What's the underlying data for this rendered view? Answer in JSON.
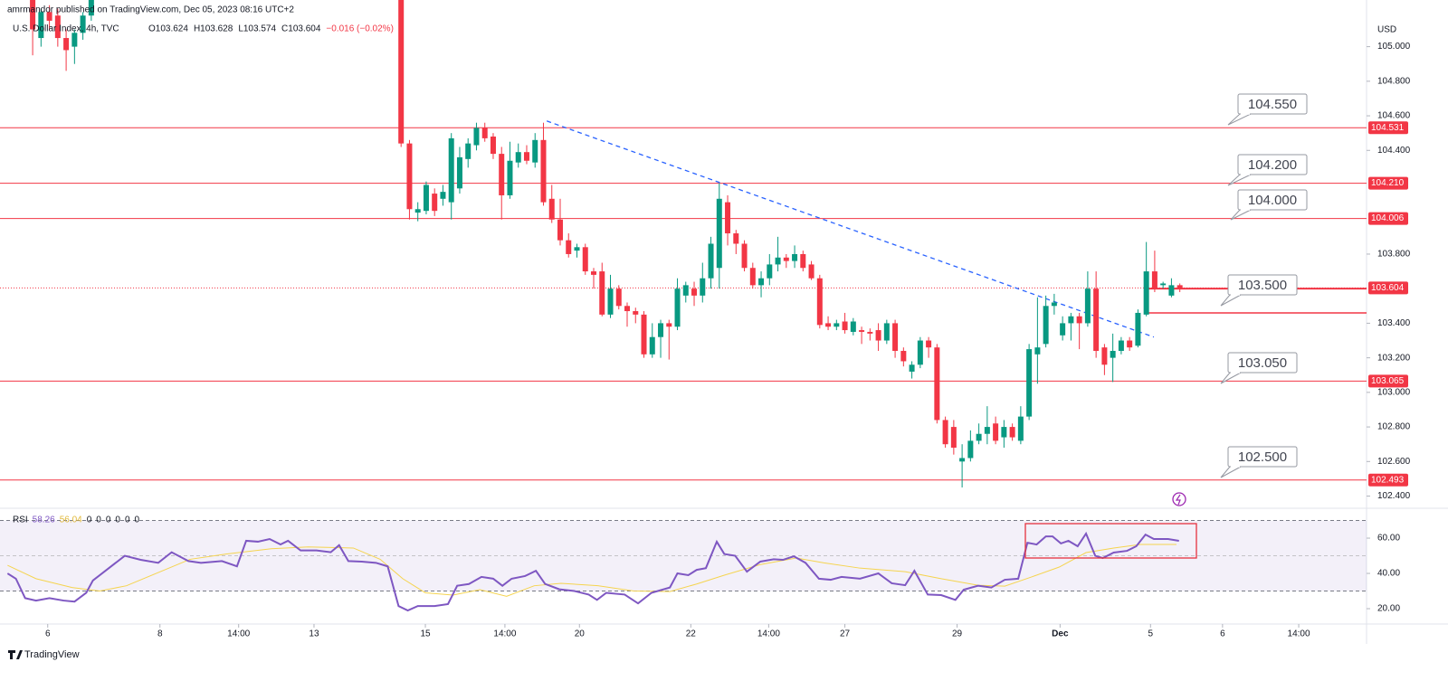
{
  "header": "amrmandor published on TradingView.com, Dec 05, 2023 08:16 UTC+2",
  "brand": "TradingView",
  "chart_data": {
    "type": "candlestick",
    "title": "U.S. Dollar Index, 4h, TVC",
    "legend": [
      "O103.624",
      "H103.628",
      "L103.574",
      "C103.604",
      "−0.016 (−0.02%)"
    ],
    "currency": "USD",
    "up_color": "#089981",
    "down_color": "#f23645",
    "level_color": "#f23645",
    "trend_color": "#2962ff",
    "x": [
      -2,
      -1,
      0,
      1,
      2,
      3,
      4,
      5,
      42,
      43,
      44,
      45,
      46,
      47,
      48,
      49,
      50,
      51,
      52,
      53,
      54,
      55,
      56,
      57,
      58,
      59,
      60,
      61,
      62,
      63,
      64,
      65,
      66,
      67,
      68,
      69,
      70,
      71,
      72,
      73,
      74,
      75,
      76,
      77,
      78,
      79,
      80,
      81,
      82,
      83,
      84,
      85,
      86,
      87,
      88,
      89,
      90,
      91,
      92,
      93,
      94,
      95,
      96,
      97,
      98,
      99,
      100,
      101,
      102,
      103,
      104,
      105,
      106,
      107,
      108,
      109,
      110,
      111,
      112,
      113,
      114,
      115,
      116,
      117,
      118,
      119,
      120,
      121,
      122,
      123,
      124,
      125,
      126,
      127,
      128,
      129,
      130,
      131,
      132,
      133,
      134,
      135
    ],
    "open": [
      105.3,
      105.05,
      105.2,
      105.18,
      105.05,
      105.0,
      105.08,
      105.18,
      105.3,
      104.44,
      104.04,
      104.05,
      104.15,
      104.12,
      104.1,
      104.18,
      104.35,
      104.43,
      104.53,
      104.48,
      104.38,
      104.14,
      104.33,
      104.39,
      104.33,
      104.46,
      104.12,
      104.0,
      103.88,
      103.82,
      103.84,
      103.7,
      103.7,
      103.45,
      103.6,
      103.5,
      103.47,
      103.45,
      103.22,
      103.32,
      103.4,
      103.38,
      103.56,
      103.6,
      103.56,
      103.66,
      103.72,
      104.1,
      103.92,
      103.86,
      103.72,
      103.62,
      103.66,
      103.74,
      103.78,
      103.76,
      103.8,
      103.74,
      103.66,
      103.4,
      103.38,
      103.41,
      103.35,
      103.36,
      103.35,
      103.36,
      103.3,
      103.4,
      103.24,
      103.12,
      103.16,
      103.3,
      103.26,
      102.84,
      102.8,
      102.6,
      102.62,
      102.72,
      102.76,
      102.82,
      102.74,
      102.8,
      102.72,
      102.86,
      103.22,
      103.28,
      103.5,
      103.33,
      103.4,
      103.44,
      103.4,
      103.6,
      103.26,
      103.2,
      103.24,
      103.3,
      103.27,
      103.45,
      103.7,
      103.62,
      103.56,
      103.62
    ],
    "high": [
      105.32,
      105.22,
      105.24,
      105.22,
      105.1,
      105.1,
      105.2,
      105.32,
      105.4,
      104.46,
      104.1,
      104.22,
      104.18,
      104.2,
      104.5,
      104.42,
      104.47,
      104.56,
      104.56,
      104.5,
      104.42,
      104.45,
      104.44,
      104.43,
      104.5,
      104.56,
      104.2,
      104.12,
      103.92,
      103.86,
      103.86,
      103.72,
      103.75,
      103.68,
      103.62,
      103.52,
      103.49,
      103.47,
      103.4,
      103.42,
      103.42,
      103.66,
      103.64,
      103.64,
      103.75,
      103.9,
      104.21,
      104.14,
      103.94,
      103.88,
      103.75,
      103.7,
      103.8,
      103.9,
      103.8,
      103.85,
      103.82,
      103.76,
      103.68,
      103.44,
      103.42,
      103.46,
      103.43,
      103.38,
      103.37,
      103.4,
      103.42,
      103.42,
      103.26,
      103.18,
      103.32,
      103.32,
      103.28,
      102.86,
      102.84,
      102.7,
      102.78,
      102.82,
      102.92,
      102.86,
      102.84,
      102.82,
      102.92,
      103.28,
      103.55,
      103.56,
      103.57,
      103.44,
      103.46,
      103.46,
      103.7,
      103.7,
      103.28,
      103.34,
      103.32,
      103.32,
      103.48,
      103.87,
      103.82,
      103.64,
      103.66,
      103.63
    ],
    "low": [
      104.95,
      105.0,
      105.1,
      105.0,
      104.86,
      104.9,
      105.04,
      105.15,
      104.42,
      104.0,
      103.99,
      104.03,
      104.02,
      104.08,
      104.0,
      104.15,
      104.3,
      104.4,
      104.45,
      104.35,
      104.0,
      104.12,
      104.3,
      104.32,
      104.3,
      104.08,
      103.98,
      103.85,
      103.78,
      103.78,
      103.68,
      103.6,
      103.44,
      103.43,
      103.48,
      103.38,
      103.4,
      103.2,
      103.2,
      103.2,
      103.19,
      103.36,
      103.52,
      103.5,
      103.52,
      103.6,
      103.6,
      103.85,
      103.8,
      103.7,
      103.6,
      103.55,
      103.62,
      103.7,
      103.72,
      103.72,
      103.7,
      103.65,
      103.37,
      103.36,
      103.36,
      103.34,
      103.33,
      103.28,
      103.3,
      103.24,
      103.28,
      103.2,
      103.15,
      103.08,
      103.14,
      103.2,
      102.82,
      102.68,
      102.64,
      102.45,
      102.6,
      102.7,
      102.7,
      102.7,
      102.68,
      102.72,
      102.7,
      102.84,
      103.05,
      103.26,
      103.45,
      103.3,
      103.3,
      103.25,
      103.38,
      103.2,
      103.1,
      103.06,
      103.22,
      103.24,
      103.26,
      103.44,
      103.58,
      103.6,
      103.55,
      103.58
    ],
    "close": [
      105.1,
      105.2,
      105.15,
      105.05,
      104.98,
      105.08,
      105.18,
      105.3,
      104.44,
      104.06,
      104.06,
      104.2,
      104.05,
      104.16,
      104.47,
      104.36,
      104.44,
      104.53,
      104.47,
      104.38,
      104.14,
      104.34,
      104.39,
      104.34,
      104.46,
      104.1,
      104.0,
      103.88,
      103.8,
      103.84,
      103.7,
      103.68,
      103.45,
      103.6,
      103.5,
      103.47,
      103.45,
      103.22,
      103.32,
      103.4,
      103.38,
      103.6,
      103.62,
      103.56,
      103.66,
      103.86,
      104.12,
      103.92,
      103.86,
      103.72,
      103.62,
      103.66,
      103.74,
      103.78,
      103.76,
      103.8,
      103.72,
      103.66,
      103.39,
      103.38,
      103.4,
      103.36,
      103.41,
      103.35,
      103.34,
      103.3,
      103.4,
      103.24,
      103.18,
      103.16,
      103.3,
      103.26,
      102.84,
      102.7,
      102.68,
      102.62,
      102.72,
      102.76,
      102.8,
      102.72,
      102.8,
      102.74,
      102.86,
      103.25,
      103.26,
      103.5,
      103.52,
      103.4,
      103.44,
      103.4,
      103.6,
      103.24,
      103.16,
      103.24,
      103.3,
      103.26,
      103.46,
      103.7,
      103.6,
      103.63,
      103.62,
      103.6
    ],
    "xlim": [
      -5.9,
      157.3
    ],
    "xticks": [
      {
        "value": -0.2,
        "label": "6"
      },
      {
        "value": 13.2,
        "label": "8"
      },
      {
        "value": 22.6,
        "label": "14:00"
      },
      {
        "value": 31.6,
        "label": "13"
      },
      {
        "value": 44.9,
        "label": "15"
      },
      {
        "value": 54.4,
        "label": "14:00"
      },
      {
        "value": 63.3,
        "label": "20"
      },
      {
        "value": 76.6,
        "label": "22"
      },
      {
        "value": 85.9,
        "label": "14:00"
      },
      {
        "value": 95.0,
        "label": "27"
      },
      {
        "value": 108.4,
        "label": "29"
      },
      {
        "value": 120.7,
        "label": "Dec"
      },
      {
        "value": 131.5,
        "label": "5"
      },
      {
        "value": 140.1,
        "label": "6"
      },
      {
        "value": 149.2,
        "label": "14:00"
      }
    ],
    "ylim": [
      102.34,
      105.27
    ],
    "yticks": [
      {
        "value": 105,
        "label": "105.000"
      },
      {
        "value": 104.8,
        "label": "104.800"
      },
      {
        "value": 104.6,
        "label": "104.600"
      },
      {
        "value": 104.4,
        "label": "104.400"
      },
      {
        "value": 103.8,
        "label": "103.800"
      },
      {
        "value": 103.4,
        "label": "103.400"
      },
      {
        "value": 103.2,
        "label": "103.200"
      },
      {
        "value": 103,
        "label": "103.000"
      },
      {
        "value": 102.8,
        "label": "102.800"
      },
      {
        "value": 102.6,
        "label": "102.600"
      },
      {
        "value": 102.4,
        "label": "102.400"
      }
    ],
    "levels": [
      {
        "value": 104.531,
        "label": "104.531"
      },
      {
        "value": 104.21,
        "label": "104.210"
      },
      {
        "value": 104.006,
        "label": "104.006"
      },
      {
        "value": 103.065,
        "label": "103.065"
      },
      {
        "value": 102.493,
        "label": "102.493"
      }
    ],
    "last_price": {
      "value": 103.604,
      "label": "103.604"
    },
    "segments": [
      {
        "value": 103.6,
        "from": 131
      },
      {
        "value": 103.46,
        "from": 131
      }
    ],
    "trendline": {
      "x": [
        59.4,
        131.9
      ],
      "values": [
        104.57,
        103.32
      ]
    },
    "callouts": [
      "104.550",
      "104.200",
      "104.000",
      "103.500",
      "103.050",
      "102.500"
    ],
    "rsi": {
      "name": "RSI",
      "last": 58.26,
      "signal_last": 56.04,
      "extra": [
        "0",
        "0",
        "0",
        "0",
        "0",
        "0"
      ],
      "color": "#7e57c2",
      "signal_color": "#f5d44f",
      "ylim": [
        11.3,
        75.4
      ],
      "yticks": [
        {
          "value": 60,
          "label": "60.00"
        },
        {
          "value": 40,
          "label": "40.00"
        },
        {
          "value": 20,
          "label": "20.00"
        }
      ],
      "bands": [
        30,
        50,
        70
      ],
      "x": [
        -5.0,
        -4.0,
        -2.9,
        -1.6,
        0.0,
        1.7,
        3.0,
        4.4,
        5.2,
        7.1,
        9.0,
        10.9,
        13.0,
        14.6,
        16.6,
        18.1,
        20.6,
        22.4,
        23.5,
        24.9,
        26.3,
        27.6,
        28.5,
        30.0,
        31.9,
        33.6,
        34.6,
        35.7,
        37.3,
        39.0,
        40.4,
        41.7,
        42.8,
        44.0,
        46.0,
        47.6,
        48.7,
        50.1,
        51.6,
        53.0,
        54.1,
        55.2,
        56.8,
        58.1,
        59.2,
        60.9,
        62.7,
        64.4,
        65.4,
        66.5,
        68.7,
        70.3,
        71.9,
        74.1,
        75.0,
        76.3,
        77.3,
        78.4,
        79.7,
        80.6,
        81.9,
        83.3,
        84.9,
        86.5,
        87.6,
        88.9,
        90.3,
        91.9,
        93.3,
        94.6,
        96.8,
        99.0,
        100.6,
        102.2,
        103.3,
        104.9,
        106.5,
        108.2,
        109.2,
        110.9,
        112.5,
        114.1,
        115.7,
        116.8,
        117.9,
        119.0,
        119.8,
        120.8,
        121.7,
        122.8,
        123.8,
        124.9,
        125.8,
        127.1,
        128.7,
        129.8,
        130.9,
        131.9,
        133.6,
        134.9
      ],
      "values": [
        40,
        37,
        26,
        24.6,
        26,
        24.6,
        24,
        29,
        36,
        43,
        50,
        47.7,
        46,
        52,
        47,
        46,
        47,
        44,
        58.5,
        58,
        59.5,
        56.4,
        58.5,
        53,
        53,
        52,
        56,
        47,
        46.7,
        46,
        44,
        21.5,
        19,
        21.5,
        21.5,
        22.6,
        33,
        34,
        38,
        37,
        33,
        37,
        38.5,
        41.5,
        34,
        31,
        30,
        28,
        25,
        29,
        28,
        23,
        29,
        32,
        40,
        39,
        42,
        43,
        58,
        51,
        50,
        41,
        46.7,
        48,
        47.7,
        49.7,
        46,
        37,
        36.4,
        38,
        37,
        40,
        34.4,
        33.3,
        41.5,
        28,
        27.7,
        25,
        30.8,
        33,
        32,
        36.4,
        37,
        57.4,
        56.4,
        61,
        61,
        57,
        58.5,
        55.4,
        62.6,
        50,
        48.7,
        51.8,
        52.8,
        55.4,
        62,
        59.5,
        59.5,
        58.5
      ],
      "signal_x": [
        -5.0,
        -1.6,
        2.7,
        6.0,
        9.2,
        13.0,
        16.8,
        21.1,
        26.5,
        30.9,
        36.3,
        39.5,
        42.2,
        44.9,
        48.2,
        51.4,
        54.6,
        57.9,
        61.1,
        65.5,
        69.8,
        74.1,
        77.3,
        80.6,
        84.9,
        89.2,
        92.5,
        96.8,
        102.2,
        106.5,
        110.9,
        114.1,
        117.3,
        120.6,
        123.8,
        127.1,
        130.3,
        134.6
      ],
      "signal": [
        44.6,
        37,
        32,
        30,
        33,
        40.5,
        48,
        51,
        54,
        55,
        54.4,
        48,
        37,
        29,
        27.7,
        30.8,
        27,
        33,
        34.4,
        33,
        30,
        29.7,
        34,
        39,
        45,
        48.7,
        46,
        43,
        41,
        37,
        33.3,
        32.8,
        38,
        43.6,
        51.8,
        54.4,
        56.4,
        56.4
      ]
    }
  }
}
